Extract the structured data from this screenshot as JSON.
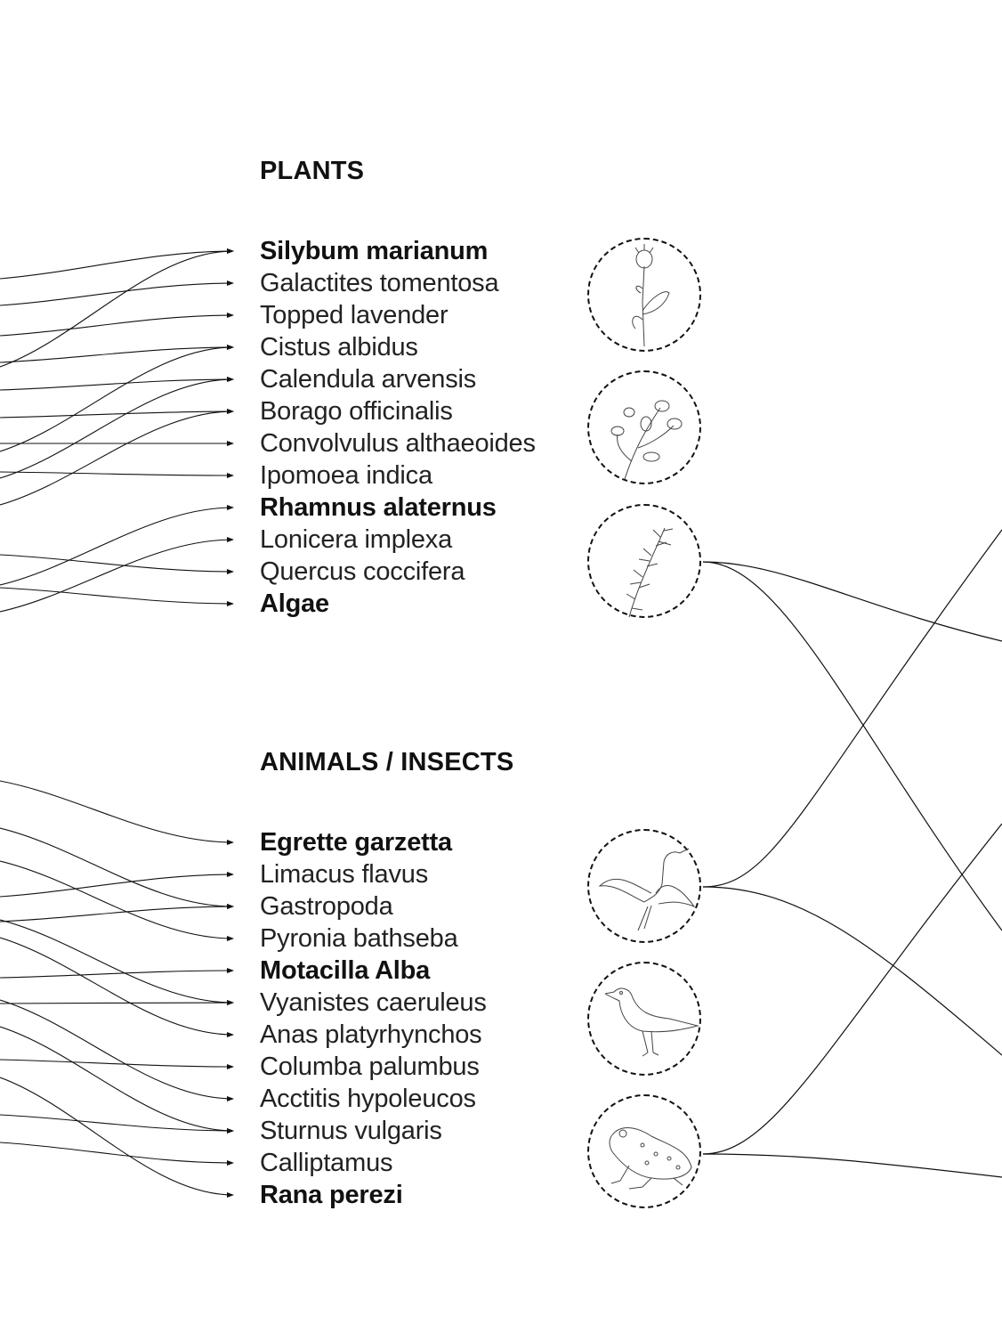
{
  "plants": {
    "heading": "PLANTS",
    "items": [
      {
        "label": "Silybum marianum",
        "bold": true
      },
      {
        "label": "Galactites tomentosa",
        "bold": false
      },
      {
        "label": "Topped lavender",
        "bold": false
      },
      {
        "label": "Cistus albidus",
        "bold": false
      },
      {
        "label": "Calendula arvensis",
        "bold": false
      },
      {
        "label": "Borago officinalis",
        "bold": false
      },
      {
        "label": "Convolvulus althaeoides",
        "bold": false
      },
      {
        "label": "Ipomoea indica",
        "bold": false
      },
      {
        "label": "Rhamnus alaternus",
        "bold": true
      },
      {
        "label": "Lonicera implexa",
        "bold": false
      },
      {
        "label": "Quercus coccifera",
        "bold": false
      },
      {
        "label": "Algae",
        "bold": true
      }
    ],
    "illustrations": [
      "thistle-illustration",
      "borage-illustration",
      "rhamnus-branch-illustration"
    ]
  },
  "animals": {
    "heading": "ANIMALS / INSECTS",
    "items": [
      {
        "label": "Egrette garzetta",
        "bold": true
      },
      {
        "label": "Limacus flavus",
        "bold": false
      },
      {
        "label": "Gastropoda",
        "bold": false
      },
      {
        "label": "Pyronia bathseba",
        "bold": false
      },
      {
        "label": "Motacilla Alba",
        "bold": true
      },
      {
        "label": "Vyanistes caeruleus",
        "bold": false
      },
      {
        "label": "Anas platyrhynchos",
        "bold": false
      },
      {
        "label": "Columba palumbus",
        "bold": false
      },
      {
        "label": "Acctitis hypoleucos",
        "bold": false
      },
      {
        "label": "Sturnus vulgaris",
        "bold": false
      },
      {
        "label": "Calliptamus",
        "bold": false
      },
      {
        "label": "Rana perezi",
        "bold": true
      }
    ],
    "illustrations": [
      "egret-illustration",
      "wagtail-illustration",
      "frog-illustration"
    ]
  },
  "colors": {
    "line": "#111111",
    "text": "#111111"
  }
}
